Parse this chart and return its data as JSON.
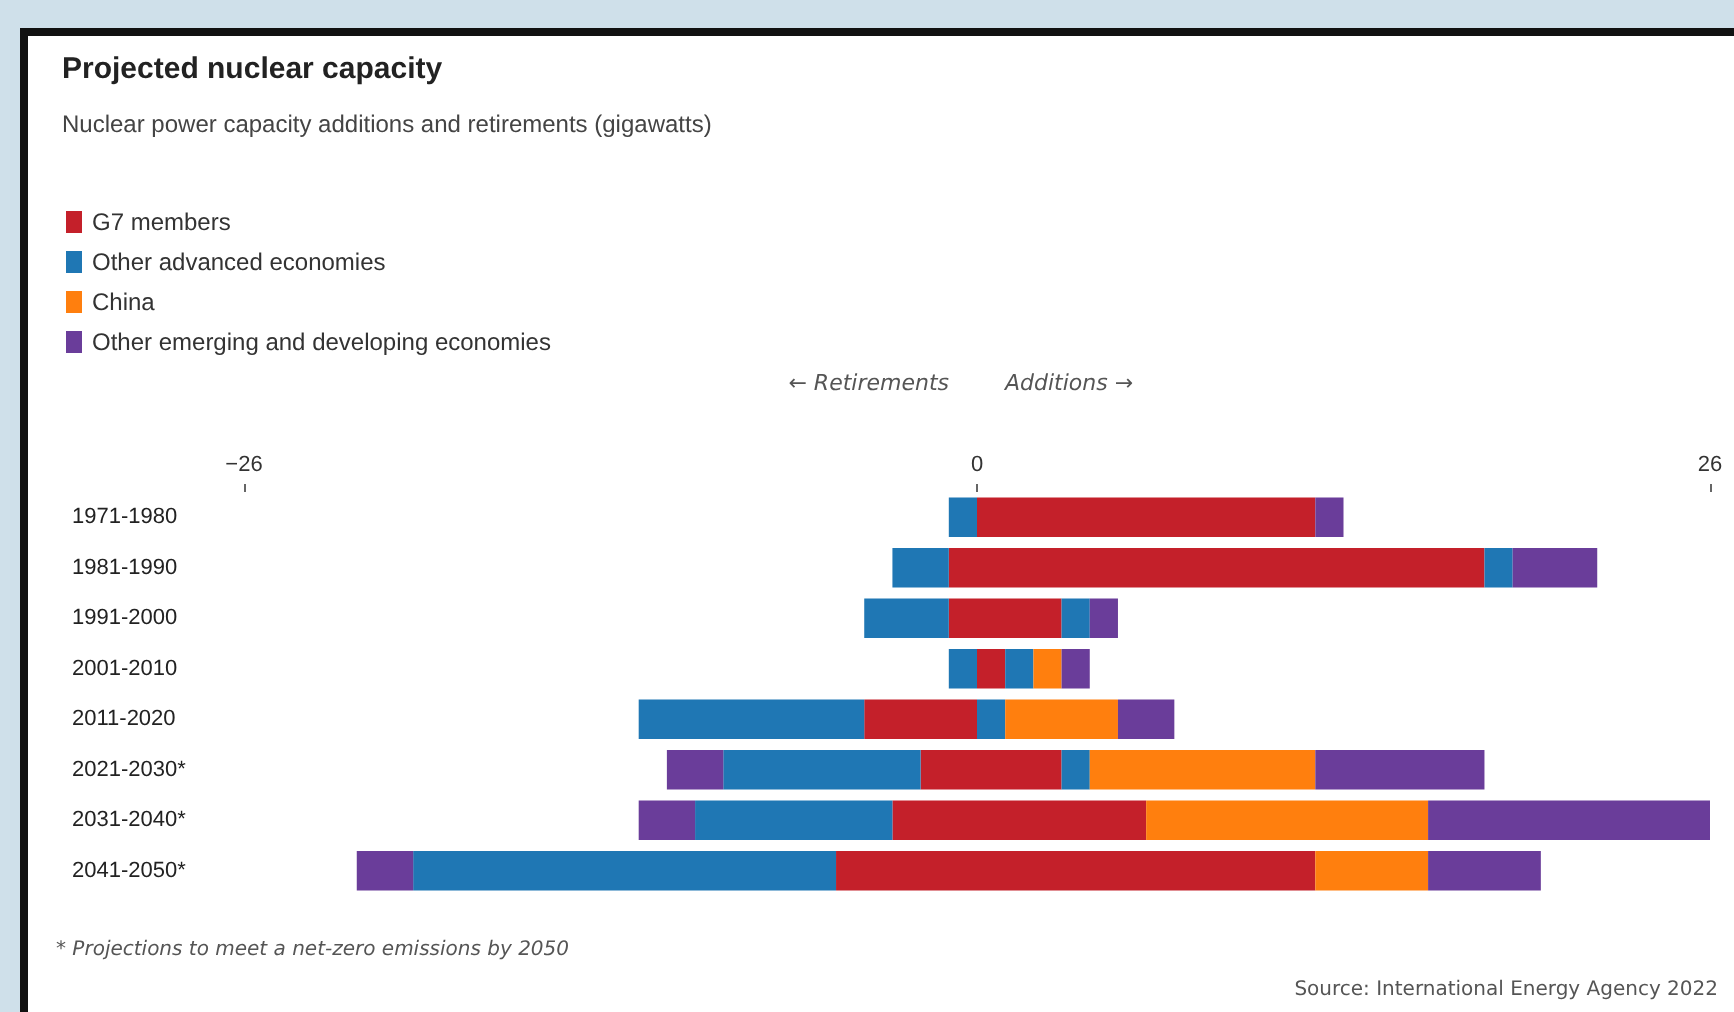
{
  "chart_data": {
    "type": "bar",
    "orientation": "horizontal",
    "stacked": true,
    "title": "Projected nuclear capacity",
    "subtitle": "Nuclear power capacity additions and retirements (gigawatts)",
    "categories": [
      "1971-1980",
      "1981-1990",
      "1991-2000",
      "2001-2010",
      "2011-2020",
      "2021-2030*",
      "2031-2040*",
      "2041-2050*"
    ],
    "series": [
      {
        "name": "G7 members",
        "color": "#c4202a",
        "values": [
          12,
          18,
          3,
          1,
          0,
          3,
          6,
          12
        ]
      },
      {
        "name": "Other advanced economies",
        "color": "#1f77b4",
        "values": [
          0,
          1,
          1,
          1,
          1,
          1,
          0,
          0
        ]
      },
      {
        "name": "China",
        "color": "#ff7f0e",
        "values": [
          0,
          0,
          0,
          1,
          4,
          8,
          10,
          4
        ]
      },
      {
        "name": "Other emerging and developing economies",
        "color": "#6a3d9a",
        "values": [
          1,
          3,
          1,
          1,
          2,
          6,
          10,
          4
        ]
      },
      {
        "color": "#c4202a",
        "values": [
          0,
          -1,
          -1,
          0,
          -4,
          -2,
          -3,
          -5
        ]
      },
      {
        "color": "#1f77b4",
        "values": [
          -1,
          -2,
          -3,
          -1,
          -8,
          -7,
          -7,
          -15
        ]
      },
      {
        "color": "#6a3d9a",
        "values": [
          0,
          0,
          0,
          0,
          0,
          -2,
          -2,
          -2
        ]
      }
    ],
    "xlim": [
      -26,
      26
    ],
    "xticks": [
      -26,
      0,
      26
    ],
    "legend": "top left",
    "annotations": [
      "← Retirements",
      "Additions →",
      "* Projections to meet a net-zero emissions by 2050",
      "Source: International Energy Agency 2022"
    ]
  }
}
